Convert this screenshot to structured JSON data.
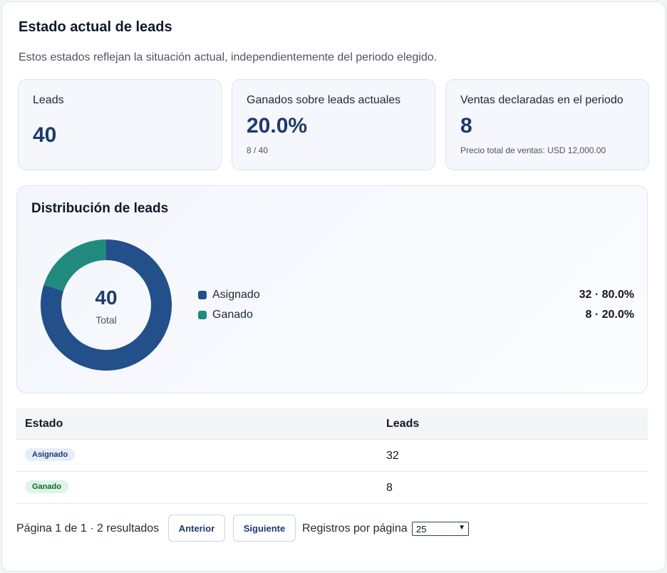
{
  "header": {
    "title": "Estado actual de leads",
    "subtitle": "Estos estados reflejan la situación actual, independientemente del periodo elegido."
  },
  "stats": [
    {
      "label": "Leads",
      "value": "40",
      "note": ""
    },
    {
      "label": "Ganados sobre leads actuales",
      "value": "20.0%",
      "note": "8 / 40"
    },
    {
      "label": "Ventas declaradas en el periodo",
      "value": "8",
      "note": "Precio total de ventas: USD 12,000.00"
    }
  ],
  "distribution": {
    "title": "Distribución de leads",
    "center_value": "40",
    "center_label": "Total",
    "items": [
      {
        "name": "Asignado",
        "summary": "32 · 80.0%",
        "count": 32,
        "color": "#234f8a"
      },
      {
        "name": "Ganado",
        "summary": "8 · 20.0%",
        "count": 8,
        "color": "#1f8a7d"
      }
    ]
  },
  "table": {
    "headers": [
      "Estado",
      "Leads"
    ],
    "rows": [
      {
        "estado": "Asignado",
        "leads": "32",
        "badge_bg": "#e5edf8",
        "badge_fg": "#1e3a6e"
      },
      {
        "estado": "Ganado",
        "leads": "8",
        "badge_bg": "#dcf5e5",
        "badge_fg": "#166534"
      }
    ]
  },
  "pagination": {
    "info": "Página 1 de 1 · 2 resultados",
    "prev_label": "Anterior",
    "next_label": "Siguiente",
    "per_page_label": "Registros por página",
    "per_page_value": "25"
  }
}
